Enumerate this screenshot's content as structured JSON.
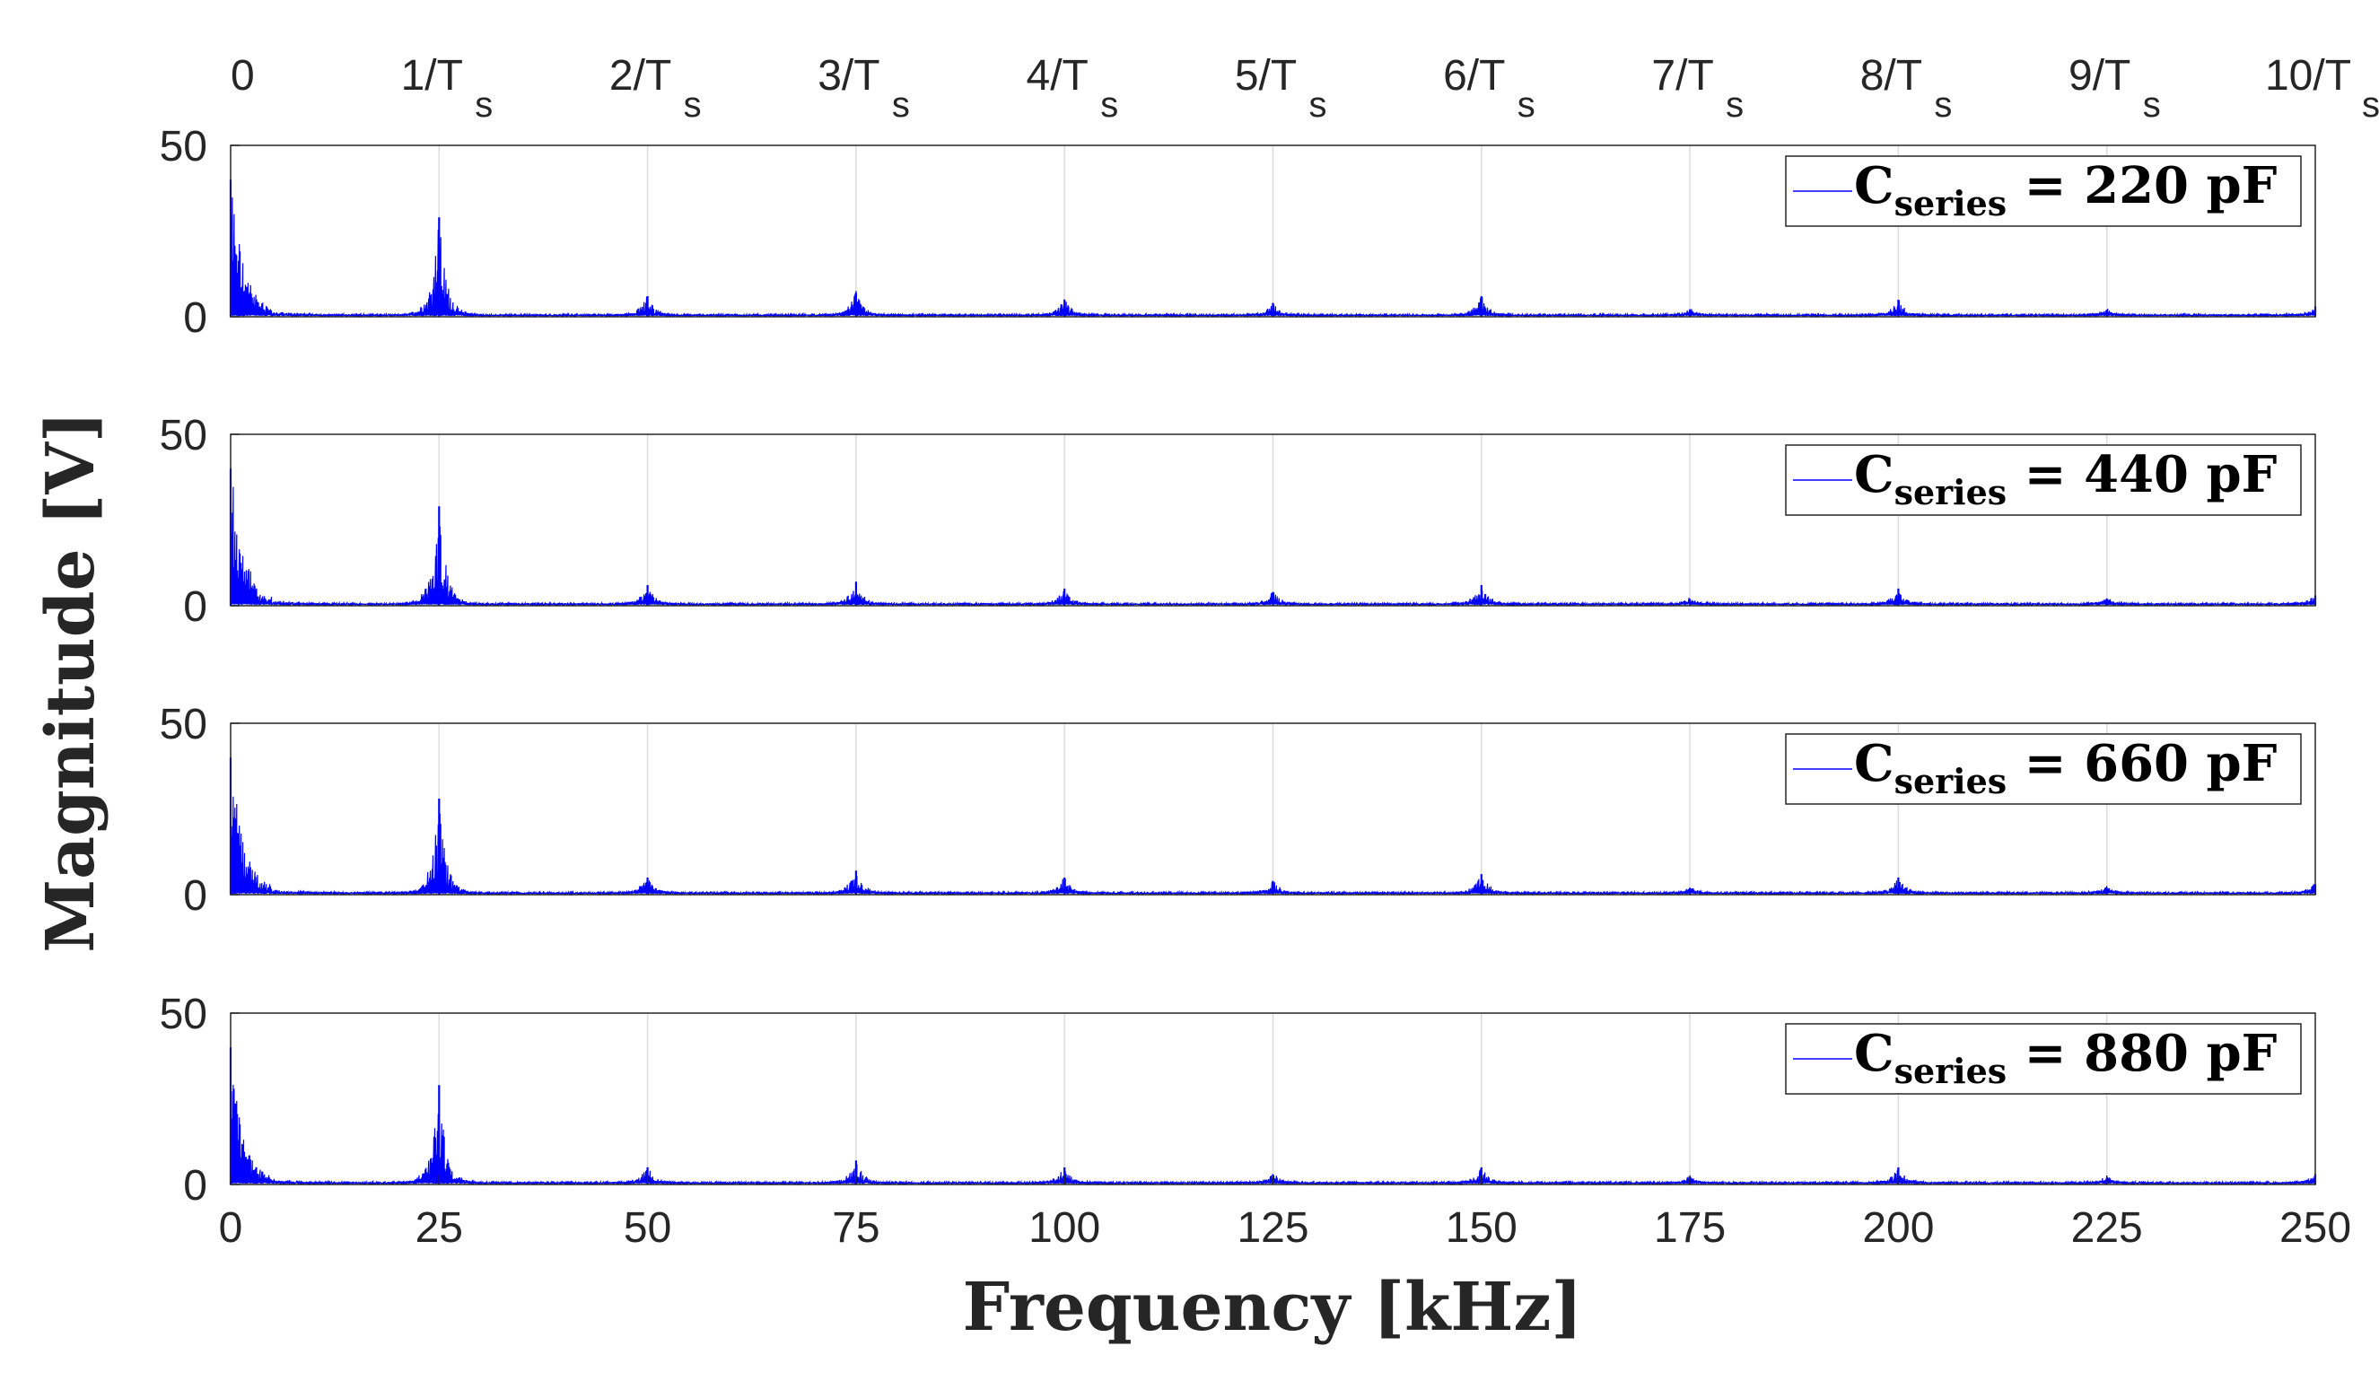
{
  "chart_data": {
    "type": "line",
    "xlabel": "Frequency [kHz]",
    "ylabel": "Magnitude [V]",
    "xlim": [
      0,
      250
    ],
    "ylim": [
      0,
      50
    ],
    "x_ticks": [
      "0",
      "25",
      "50",
      "75",
      "100",
      "125",
      "150",
      "175",
      "200",
      "225",
      "250"
    ],
    "y_ticks": [
      "0",
      "50"
    ],
    "top_ticks": [
      {
        "base": "0",
        "sub": ""
      },
      {
        "base": "1/T",
        "sub": "s"
      },
      {
        "base": "2/T",
        "sub": "s"
      },
      {
        "base": "3/T",
        "sub": "s"
      },
      {
        "base": "4/T",
        "sub": "s"
      },
      {
        "base": "5/T",
        "sub": "s"
      },
      {
        "base": "6/T",
        "sub": "s"
      },
      {
        "base": "7/T",
        "sub": "s"
      },
      {
        "base": "8/T",
        "sub": "s"
      },
      {
        "base": "9/T",
        "sub": "s"
      },
      {
        "base": "10/T",
        "sub": "s"
      }
    ],
    "grid": "vertical lines at multiples of 1/Ts",
    "line_color": "#0000ff",
    "peak_frequencies_khz": [
      0,
      25,
      50,
      75,
      100,
      125,
      150,
      175,
      200,
      225,
      250
    ],
    "series": [
      {
        "name": "C = 220 pF",
        "legend_main": "C",
        "legend_sub": "series",
        "legend_rest": " = 220 pF",
        "peaks": [
          {
            "x": 0,
            "y": 40
          },
          {
            "x": 25,
            "y": 29
          },
          {
            "x": 50,
            "y": 6
          },
          {
            "x": 75,
            "y": 7
          },
          {
            "x": 100,
            "y": 5
          },
          {
            "x": 125,
            "y": 4
          },
          {
            "x": 150,
            "y": 6
          },
          {
            "x": 175,
            "y": 2
          },
          {
            "x": 200,
            "y": 5
          },
          {
            "x": 225,
            "y": 2
          },
          {
            "x": 250,
            "y": 3
          }
        ]
      },
      {
        "name": "C = 440 pF",
        "legend_main": "C",
        "legend_sub": "series",
        "legend_rest": " = 440 pF",
        "peaks": [
          {
            "x": 0,
            "y": 40
          },
          {
            "x": 25,
            "y": 29
          },
          {
            "x": 50,
            "y": 6
          },
          {
            "x": 75,
            "y": 7
          },
          {
            "x": 100,
            "y": 5
          },
          {
            "x": 125,
            "y": 4
          },
          {
            "x": 150,
            "y": 6
          },
          {
            "x": 175,
            "y": 2
          },
          {
            "x": 200,
            "y": 5
          },
          {
            "x": 225,
            "y": 2
          },
          {
            "x": 250,
            "y": 3
          }
        ]
      },
      {
        "name": "C = 660 pF",
        "legend_main": "C",
        "legend_sub": "series",
        "legend_rest": " = 660 pF",
        "peaks": [
          {
            "x": 0,
            "y": 40
          },
          {
            "x": 25,
            "y": 28
          },
          {
            "x": 50,
            "y": 5
          },
          {
            "x": 75,
            "y": 7
          },
          {
            "x": 100,
            "y": 5
          },
          {
            "x": 125,
            "y": 4
          },
          {
            "x": 150,
            "y": 6
          },
          {
            "x": 175,
            "y": 2
          },
          {
            "x": 200,
            "y": 5
          },
          {
            "x": 225,
            "y": 2
          },
          {
            "x": 250,
            "y": 3
          }
        ]
      },
      {
        "name": "C = 880 pF",
        "legend_main": "C",
        "legend_sub": "series",
        "legend_rest": " = 880 pF",
        "peaks": [
          {
            "x": 0,
            "y": 40
          },
          {
            "x": 25,
            "y": 29
          },
          {
            "x": 50,
            "y": 5
          },
          {
            "x": 75,
            "y": 7
          },
          {
            "x": 100,
            "y": 5
          },
          {
            "x": 125,
            "y": 3
          },
          {
            "x": 150,
            "y": 5
          },
          {
            "x": 175,
            "y": 2
          },
          {
            "x": 200,
            "y": 5
          },
          {
            "x": 225,
            "y": 2
          },
          {
            "x": 250,
            "y": 3
          }
        ]
      }
    ]
  }
}
